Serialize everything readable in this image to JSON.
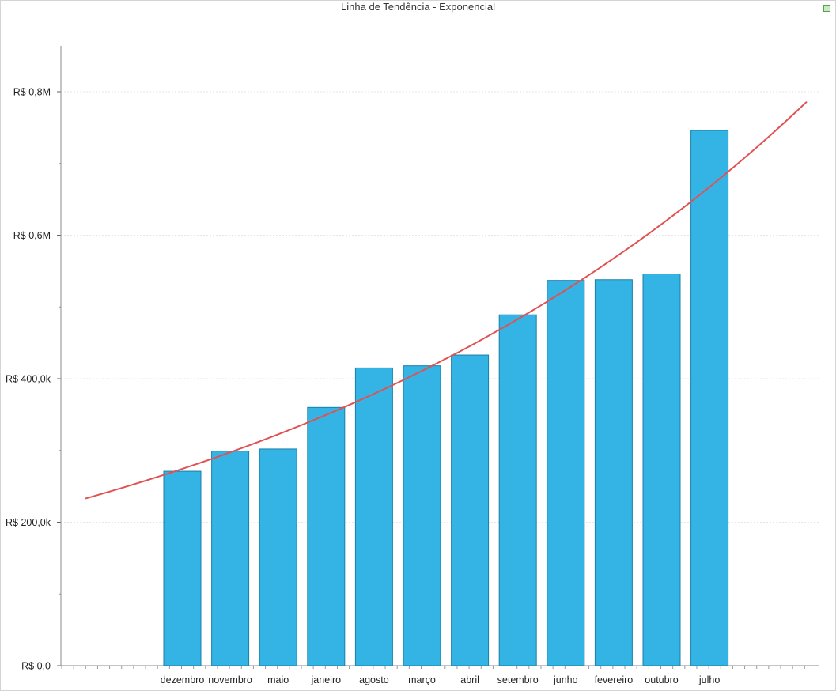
{
  "chart_data": {
    "type": "bar",
    "title": "Linha de Tendência - Exponencial",
    "categories": [
      "dezembro",
      "novembro",
      "maio",
      "janeiro",
      "agosto",
      "março",
      "abril",
      "setembro",
      "junho",
      "fevereiro",
      "outubro",
      "julho"
    ],
    "series": [
      {
        "values": [
          271000,
          299000,
          302000,
          360000,
          415000,
          418000,
          433000,
          489000,
          537000,
          538000,
          546000,
          746000
        ],
        "color": "#33b4e5",
        "border": "#1a7fa8"
      }
    ],
    "trendline": {
      "type": "exponential",
      "color": "#e05252",
      "start_value": 233000,
      "end_value": 786000
    },
    "yticks": [
      {
        "value": 0,
        "label": "R$ 0,0"
      },
      {
        "value": 200000,
        "label": "R$ 200,0k"
      },
      {
        "value": 400000,
        "label": "R$ 400,0k"
      },
      {
        "value": 600000,
        "label": "R$ 0,6M"
      },
      {
        "value": 800000,
        "label": "R$ 0,8M"
      }
    ],
    "ylim": [
      0,
      860000
    ],
    "xlabel": "",
    "ylabel": "",
    "grid": true,
    "legend": "top-right"
  }
}
